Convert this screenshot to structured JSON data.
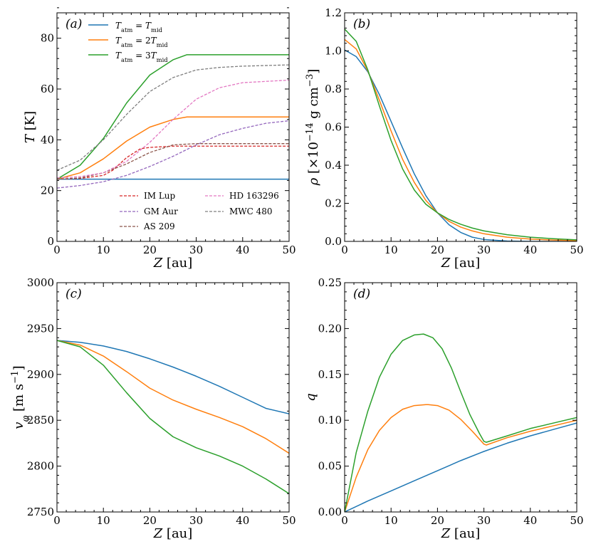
{
  "colors": {
    "blue": "#1f77b4",
    "orange": "#ff7f0e",
    "green": "#2ca02c",
    "red": "#d62728",
    "purple": "#9467bd",
    "brown": "#8c564b",
    "pink": "#e377c2",
    "gray": "#7f7f7f"
  },
  "chart_data": [
    {
      "panel": "(a)",
      "type": "line",
      "xlabel": "Z [au]",
      "ylabel": "T [K]",
      "xlim": [
        0,
        50
      ],
      "ylim": [
        0,
        90
      ],
      "xticks": [
        0,
        10,
        20,
        30,
        40,
        50
      ],
      "yticks": [
        0,
        20,
        40,
        60,
        80
      ],
      "legend_top": [
        "T_atm = T_mid",
        "T_atm = 2T_mid",
        "T_atm = 3T_mid"
      ],
      "legend_bottom": [
        "IM Lup",
        "GM Aur",
        "AS 209",
        "HD 163296",
        "MWC 480"
      ],
      "series": [
        {
          "name": "T_atm = T_mid",
          "style": "solid",
          "color": "blue",
          "x": [
            0,
            10,
            20,
            30,
            40,
            50
          ],
          "y": [
            24.5,
            24.5,
            24.5,
            24.5,
            24.5,
            24.5
          ]
        },
        {
          "name": "T_atm = 2T_mid",
          "style": "solid",
          "color": "orange",
          "x": [
            0,
            5,
            10,
            15,
            20,
            25,
            28,
            30,
            40,
            50
          ],
          "y": [
            24.5,
            27,
            32.5,
            39.5,
            45,
            48,
            49,
            49,
            49,
            49
          ]
        },
        {
          "name": "T_atm = 3T_mid",
          "style": "solid",
          "color": "green",
          "x": [
            0,
            5,
            10,
            15,
            20,
            25,
            28,
            30,
            40,
            50
          ],
          "y": [
            24.5,
            30,
            40.5,
            54.5,
            65.5,
            71.5,
            73.5,
            73.5,
            73.5,
            73.5
          ]
        },
        {
          "name": "IM Lup",
          "style": "dashed",
          "color": "red",
          "x": [
            0,
            5,
            10,
            12,
            15,
            18,
            20,
            25,
            30,
            40,
            50
          ],
          "y": [
            24.5,
            24.8,
            26,
            28,
            33,
            36.5,
            37,
            37.5,
            37.5,
            37.5,
            37.5
          ]
        },
        {
          "name": "GM Aur",
          "style": "dashed",
          "color": "purple",
          "x": [
            0,
            5,
            10,
            15,
            20,
            25,
            30,
            35,
            40,
            45,
            50
          ],
          "y": [
            21,
            22,
            23.5,
            26,
            29.5,
            33.5,
            38,
            42,
            44.5,
            46.5,
            47.5
          ]
        },
        {
          "name": "AS 209",
          "style": "dashed",
          "color": "brown",
          "x": [
            0,
            5,
            10,
            15,
            20,
            25,
            30,
            40,
            50
          ],
          "y": [
            24.5,
            25,
            27,
            30.5,
            35,
            38,
            38.5,
            38.5,
            38.5
          ]
        },
        {
          "name": "HD 163296",
          "style": "dashed",
          "color": "pink",
          "x": [
            0,
            5,
            10,
            15,
            20,
            25,
            30,
            35,
            40,
            45,
            50
          ],
          "y": [
            25,
            25.5,
            27,
            31.5,
            39,
            48,
            56,
            60.5,
            62.5,
            63,
            63.5
          ]
        },
        {
          "name": "MWC 480",
          "style": "dashed",
          "color": "gray",
          "x": [
            0,
            5,
            10,
            15,
            20,
            25,
            30,
            35,
            40,
            50
          ],
          "y": [
            28,
            32,
            40,
            50,
            59,
            64.5,
            67.5,
            68.5,
            69,
            69.5
          ]
        }
      ]
    },
    {
      "panel": "(b)",
      "type": "line",
      "xlabel": "Z [au]",
      "ylabel": "ρ [×10^−14 g cm^−3]",
      "xlim": [
        0,
        50
      ],
      "ylim": [
        0,
        1.2
      ],
      "xticks": [
        0,
        10,
        20,
        30,
        40,
        50
      ],
      "yticks": [
        0.0,
        0.2,
        0.4,
        0.6,
        0.8,
        1.0,
        1.2
      ],
      "series": [
        {
          "color": "blue",
          "style": "solid",
          "x": [
            0,
            2.5,
            5,
            7.5,
            10,
            12.5,
            15,
            17.5,
            20,
            22.5,
            25,
            27.5,
            30,
            35,
            40,
            45,
            50
          ],
          "y": [
            1.005,
            0.97,
            0.89,
            0.77,
            0.63,
            0.49,
            0.355,
            0.24,
            0.15,
            0.087,
            0.047,
            0.022,
            0.01,
            0.002,
            0.0,
            0.0,
            0.0
          ]
        },
        {
          "color": "orange",
          "style": "solid",
          "x": [
            0,
            2.5,
            5,
            7.5,
            10,
            12.5,
            15,
            17.5,
            20,
            22.5,
            25,
            27.5,
            30,
            35,
            40,
            45,
            50
          ],
          "y": [
            1.06,
            1.01,
            0.895,
            0.74,
            0.58,
            0.43,
            0.31,
            0.215,
            0.15,
            0.105,
            0.075,
            0.055,
            0.04,
            0.022,
            0.012,
            0.007,
            0.004
          ]
        },
        {
          "color": "green",
          "style": "solid",
          "x": [
            0,
            2.5,
            5,
            7.5,
            10,
            12.5,
            15,
            17.5,
            20,
            22.5,
            25,
            27.5,
            30,
            35,
            40,
            45,
            50
          ],
          "y": [
            1.115,
            1.05,
            0.9,
            0.71,
            0.53,
            0.38,
            0.27,
            0.195,
            0.15,
            0.115,
            0.09,
            0.07,
            0.055,
            0.035,
            0.022,
            0.014,
            0.008
          ]
        }
      ]
    },
    {
      "panel": "(c)",
      "type": "line",
      "xlabel": "Z [au]",
      "ylabel": "v_φ [m s^−1]",
      "xlim": [
        0,
        50
      ],
      "ylim": [
        2750,
        3000
      ],
      "xticks": [
        0,
        10,
        20,
        30,
        40,
        50
      ],
      "yticks": [
        2750,
        2800,
        2850,
        2900,
        2950,
        3000
      ],
      "series": [
        {
          "color": "blue",
          "style": "solid",
          "x": [
            0,
            5,
            10,
            15,
            20,
            25,
            30,
            35,
            40,
            45,
            50
          ],
          "y": [
            2937,
            2935,
            2931,
            2925,
            2917,
            2908,
            2898,
            2887,
            2875,
            2863,
            2857
          ]
        },
        {
          "color": "orange",
          "style": "solid",
          "x": [
            0,
            5,
            10,
            15,
            20,
            25,
            30,
            35,
            40,
            45,
            50
          ],
          "y": [
            2937,
            2932,
            2920,
            2903,
            2885,
            2872,
            2862,
            2853,
            2843,
            2830,
            2814
          ]
        },
        {
          "color": "green",
          "style": "solid",
          "x": [
            0,
            5,
            10,
            15,
            20,
            25,
            30,
            35,
            40,
            45,
            50
          ],
          "y": [
            2937,
            2930,
            2910,
            2880,
            2852,
            2832,
            2820,
            2811,
            2800,
            2786,
            2770
          ]
        }
      ]
    },
    {
      "panel": "(d)",
      "type": "line",
      "xlabel": "Z [au]",
      "ylabel": "q",
      "xlim": [
        0,
        50
      ],
      "ylim": [
        0,
        0.25
      ],
      "xticks": [
        0,
        10,
        20,
        30,
        40,
        50
      ],
      "yticks": [
        0.0,
        0.05,
        0.1,
        0.15,
        0.2,
        0.25
      ],
      "series": [
        {
          "color": "blue",
          "style": "solid",
          "x": [
            0,
            5,
            10,
            15,
            20,
            25,
            30,
            35,
            40,
            45,
            50
          ],
          "y": [
            0.0,
            0.012,
            0.023,
            0.034,
            0.045,
            0.056,
            0.066,
            0.075,
            0.083,
            0.09,
            0.097
          ]
        },
        {
          "color": "orange",
          "style": "solid",
          "x": [
            0,
            2.5,
            5,
            7.5,
            10,
            12.5,
            15,
            17.5,
            18,
            20,
            22.5,
            25,
            27.5,
            30,
            30.5,
            35,
            40,
            45,
            50
          ],
          "y": [
            0.0,
            0.038,
            0.068,
            0.089,
            0.103,
            0.112,
            0.116,
            0.117,
            0.117,
            0.116,
            0.111,
            0.101,
            0.088,
            0.074,
            0.073,
            0.081,
            0.088,
            0.094,
            0.1
          ]
        },
        {
          "color": "green",
          "style": "solid",
          "x": [
            0,
            2.5,
            5,
            7.5,
            10,
            12.5,
            15,
            17,
            19,
            21,
            23,
            25,
            27,
            29,
            30,
            30.5,
            35,
            40,
            45,
            50
          ],
          "y": [
            0.0,
            0.065,
            0.11,
            0.147,
            0.172,
            0.187,
            0.193,
            0.194,
            0.19,
            0.178,
            0.157,
            0.131,
            0.106,
            0.086,
            0.077,
            0.076,
            0.083,
            0.091,
            0.097,
            0.103
          ]
        }
      ]
    }
  ]
}
